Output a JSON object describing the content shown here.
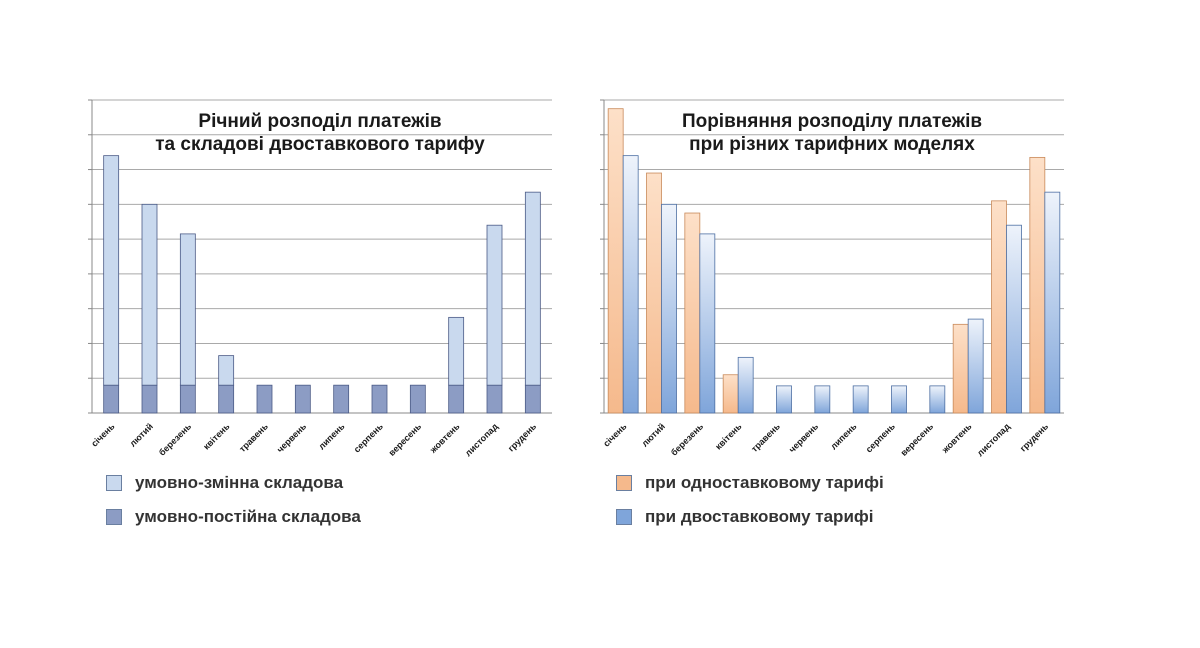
{
  "chart_data": [
    {
      "type": "bar",
      "stacked": true,
      "title_lines": [
        "Річний розподіл платежів",
        "та складові двоставкового тарифу"
      ],
      "categories": [
        "січень",
        "лютий",
        "березень",
        "квітень",
        "травень",
        "червень",
        "липень",
        "серпень",
        "вересень",
        "жовтень",
        "листопад",
        "грудень"
      ],
      "series": [
        {
          "name": "умовно-постійна складова",
          "values": [
            0.8,
            0.8,
            0.8,
            0.8,
            0.8,
            0.8,
            0.8,
            0.8,
            0.8,
            0.8,
            0.8,
            0.8
          ],
          "color": "#8c9cc4"
        },
        {
          "name": "умовно-змінна складова",
          "values": [
            6.6,
            5.2,
            4.35,
            0.85,
            0,
            0,
            0,
            0,
            0,
            1.95,
            4.6,
            5.55
          ],
          "color": "#c9d9ee"
        }
      ],
      "ylim": [
        0,
        9
      ],
      "grid": true,
      "tick_labels_y": false,
      "legend_position": "bottom"
    },
    {
      "type": "bar",
      "title_lines": [
        "Порівняння розподілу платежів",
        "при різних тарифних моделях"
      ],
      "categories": [
        "січень",
        "лютий",
        "березень",
        "квітень",
        "травень",
        "червень",
        "липень",
        "серпень",
        "вересень",
        "жовтень",
        "листопад",
        "грудень"
      ],
      "series": [
        {
          "name": "при одноставковому тарифі",
          "values": [
            8.75,
            6.9,
            5.75,
            1.1,
            0,
            0,
            0,
            0,
            0,
            2.55,
            6.1,
            7.35
          ],
          "color": "#f5b98c"
        },
        {
          "name": "при двоставковому тарифі",
          "values": [
            7.4,
            6.0,
            5.15,
            1.6,
            0.78,
            0.78,
            0.78,
            0.78,
            0.78,
            2.7,
            5.4,
            6.35
          ],
          "color": "#7fa5da"
        }
      ],
      "ylim": [
        0,
        9
      ],
      "grid": true,
      "tick_labels_y": false,
      "legend_position": "bottom"
    }
  ]
}
